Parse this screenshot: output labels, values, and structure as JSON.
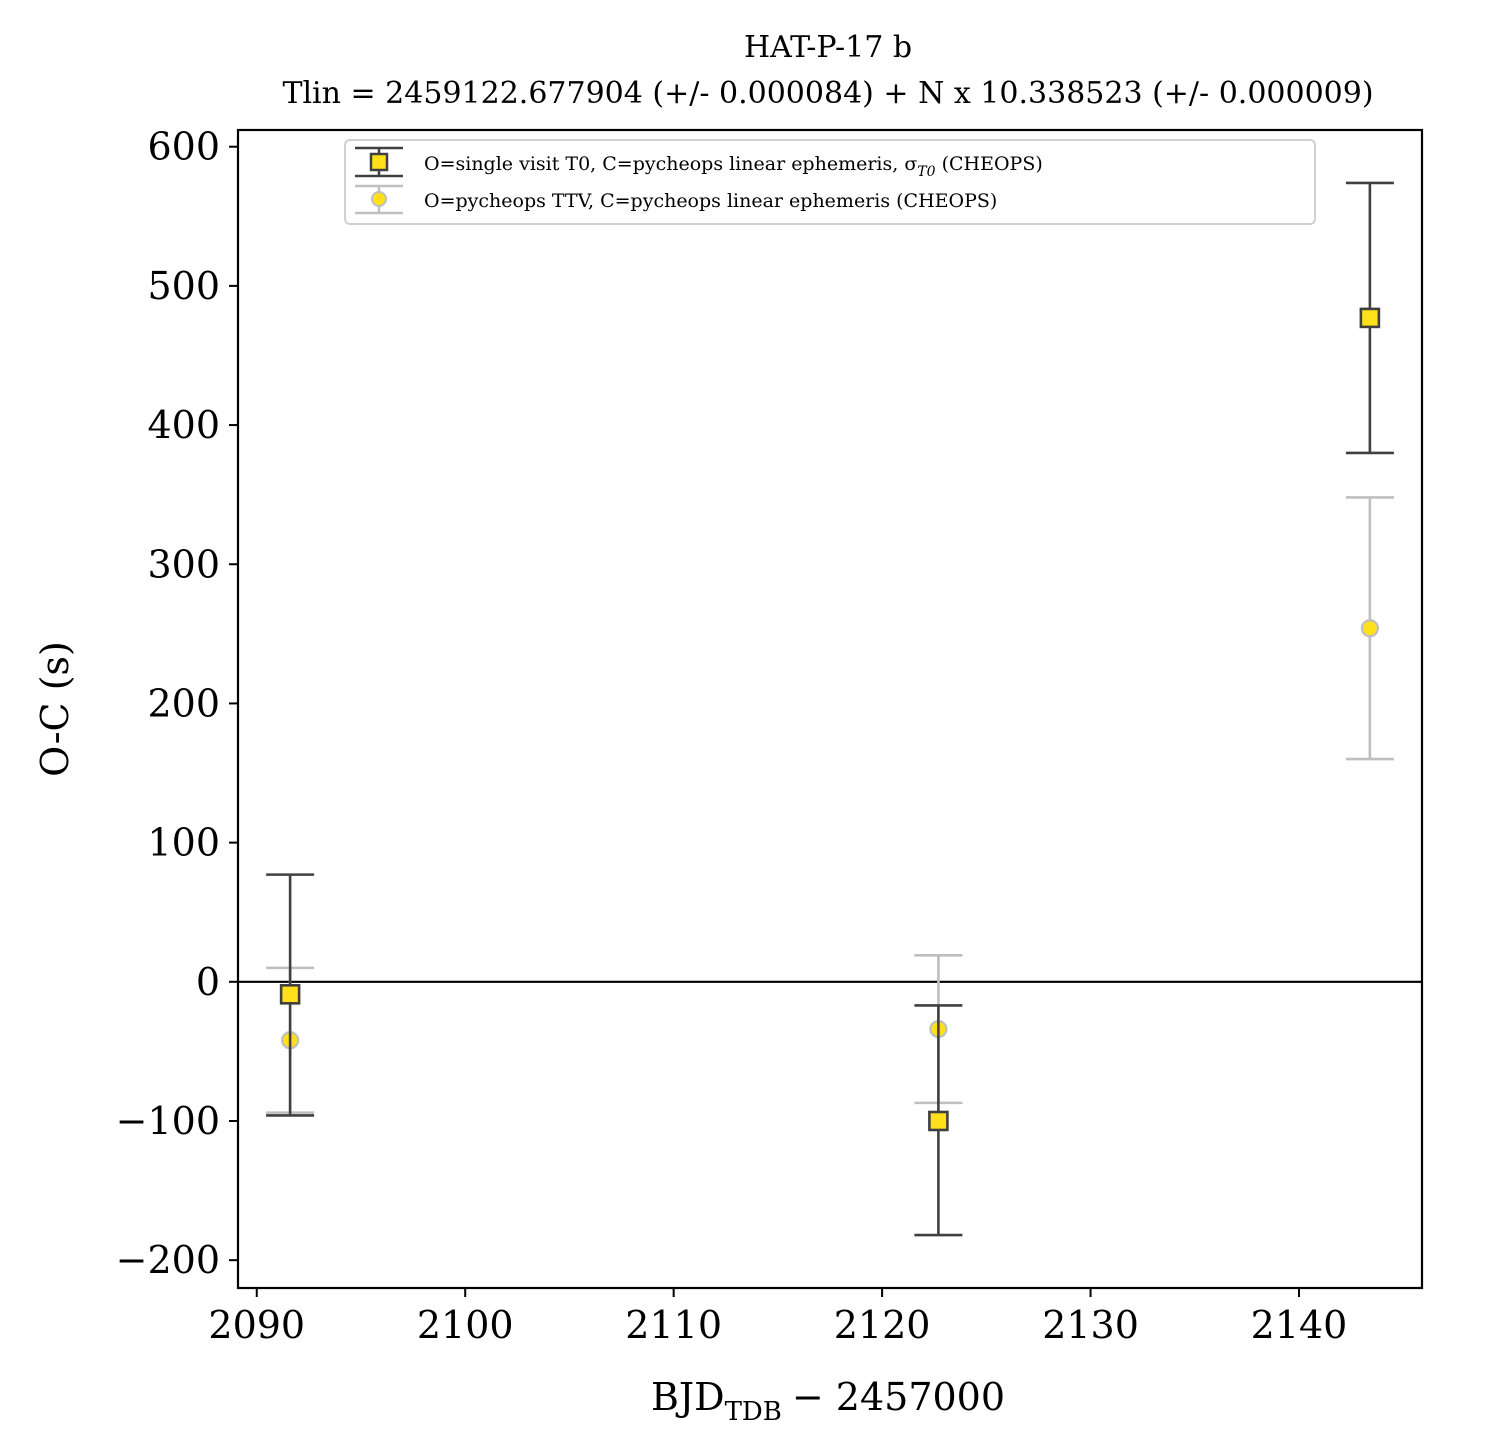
{
  "chart_data": {
    "type": "scatter",
    "title": "HAT-P-17 b",
    "subtitle": "Tlin = 2459122.677904 (+/- 0.000084) + N x 10.338523 (+/- 0.000009)",
    "xlabel": {
      "main": "BJD",
      "sub": "TDB",
      "suffix": "− 2457000"
    },
    "ylabel": "O-C (s)",
    "xlim": [
      2089.1,
      2145.9
    ],
    "ylim": [
      -220,
      612
    ],
    "xticks": [
      2090,
      2100,
      2110,
      2120,
      2130,
      2140
    ],
    "xtick_labels": [
      "2090",
      "2100",
      "2110",
      "2120",
      "2130",
      "2140"
    ],
    "yticks": [
      -200,
      -100,
      0,
      100,
      200,
      300,
      400,
      500,
      600
    ],
    "ytick_labels": [
      "−200",
      "−100",
      "0",
      "100",
      "200",
      "300",
      "400",
      "500",
      "600"
    ],
    "reference_line_y": 0,
    "legend_position": "upper center",
    "series": [
      {
        "name": "O=single visit T0, C=pycheops linear ephemeris, σ",
        "name_subscript": "T0",
        "name_suffix": " (CHEOPS)",
        "marker": "square",
        "color": "#ffe01a",
        "edge_color": "#404040",
        "points": [
          {
            "x": 2091.6,
            "y": -9,
            "err_low": -96,
            "err_high": 77
          },
          {
            "x": 2122.7,
            "y": -100,
            "err_low": -182,
            "err_high": -17
          },
          {
            "x": 2143.4,
            "y": 477,
            "err_low": 380,
            "err_high": 574
          }
        ]
      },
      {
        "name": "O=pycheops TTV, C=pycheops linear ephemeris (CHEOPS)",
        "marker": "circle",
        "color": "#ffe01a",
        "edge_color": "#bfbfbf",
        "points": [
          {
            "x": 2091.6,
            "y": -42,
            "err_low": -94,
            "err_high": 10
          },
          {
            "x": 2122.7,
            "y": -34,
            "err_low": -87,
            "err_high": 19
          },
          {
            "x": 2143.4,
            "y": 254,
            "err_low": 160,
            "err_high": 348
          }
        ]
      }
    ]
  }
}
